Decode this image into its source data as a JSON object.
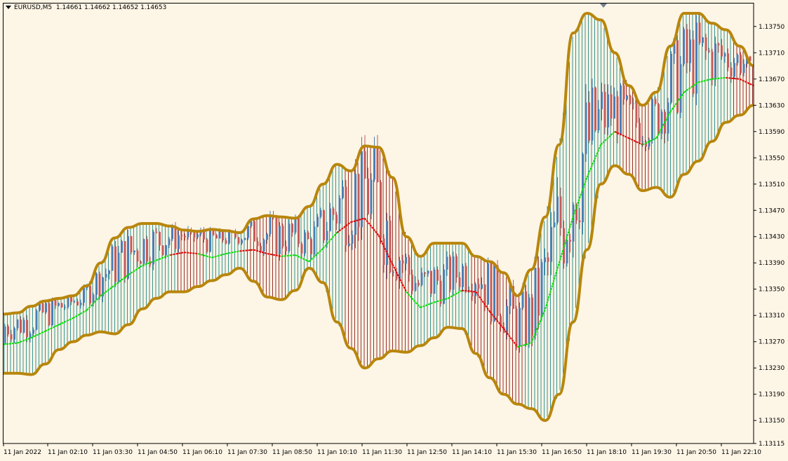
{
  "header": {
    "symbol": "EURUSD,M5",
    "ohlc": "1.14661 1.14662 1.14652 1.14653"
  },
  "colors": {
    "background": "#fdf5e6",
    "band": "#b8860b",
    "up_candle": "#4a7fb5",
    "down_candle": "#c55a5a",
    "ma_up": "#00e000",
    "ma_down": "#e00000",
    "hist_up": "#1f8a8a",
    "hist_down": "#8b1a1a",
    "hist_neutral": "#2a2a2a"
  },
  "chart_data": {
    "type": "candlestick",
    "title": "",
    "xlabel": "",
    "ylabel": "",
    "ylim": [
      1.13115,
      1.13785
    ],
    "y_ticks": [
      "1.13750",
      "1.13710",
      "1.13670",
      "1.13630",
      "1.13590",
      "1.13550",
      "1.13510",
      "1.13470",
      "1.13430",
      "1.13390",
      "1.13350",
      "1.13310",
      "1.13270",
      "1.13230",
      "1.13190",
      "1.13150",
      "1.13115"
    ],
    "x_ticks": [
      "11 Jan 2022",
      "11 Jan 02:10",
      "11 Jan 03:30",
      "11 Jan 04:50",
      "11 Jan 06:10",
      "11 Jan 07:30",
      "11 Jan 08:50",
      "11 Jan 10:10",
      "11 Jan 11:30",
      "11 Jan 12:50",
      "11 Jan 14:10",
      "11 Jan 15:30",
      "11 Jan 16:50",
      "11 Jan 18:10",
      "11 Jan 19:30",
      "11 Jan 20:50",
      "11 Jan 22:10"
    ],
    "grid": false,
    "series": [
      {
        "name": "",
        "kind": "upper_band",
        "values": [
          1.13312,
          1.13314,
          1.13324,
          1.13332,
          1.13336,
          1.1334,
          1.13355,
          1.1339,
          1.13428,
          1.13444,
          1.1345,
          1.1345,
          1.13446,
          1.1344,
          1.13438,
          1.13441,
          1.13439,
          1.13436,
          1.13457,
          1.13462,
          1.1346,
          1.13458,
          1.13476,
          1.1351,
          1.1354,
          1.1353,
          1.13568,
          1.13566,
          1.1352,
          1.1343,
          1.134,
          1.1342,
          1.1342,
          1.1342,
          1.134,
          1.13392,
          1.13375,
          1.1334,
          1.1338,
          1.1346,
          1.1357,
          1.1374,
          1.1377,
          1.1376,
          1.1371,
          1.1366,
          1.1363,
          1.1365,
          1.1372,
          1.1377,
          1.1377,
          1.13755,
          1.13745,
          1.1372,
          1.1369
        ]
      },
      {
        "name": "",
        "kind": "lower_band",
        "values": [
          1.13222,
          1.13222,
          1.1322,
          1.13236,
          1.13258,
          1.1327,
          1.1328,
          1.13285,
          1.13282,
          1.13296,
          1.1332,
          1.13336,
          1.13346,
          1.13346,
          1.13354,
          1.13363,
          1.13372,
          1.13382,
          1.13362,
          1.13338,
          1.13334,
          1.13348,
          1.13382,
          1.1336,
          1.133,
          1.1326,
          1.1323,
          1.13244,
          1.13256,
          1.13254,
          1.13264,
          1.13276,
          1.13292,
          1.1329,
          1.13252,
          1.13215,
          1.1319,
          1.13175,
          1.13168,
          1.1315,
          1.1319,
          1.133,
          1.1341,
          1.1351,
          1.13538,
          1.13525,
          1.135,
          1.13505,
          1.1349,
          1.13525,
          1.13545,
          1.13575,
          1.13604,
          1.13615,
          1.1363
        ]
      },
      {
        "name": "",
        "kind": "middle_line",
        "values": [
          1.13266,
          1.13268,
          1.13276,
          1.13286,
          1.13296,
          1.13306,
          1.13318,
          1.1334,
          1.13356,
          1.13372,
          1.13386,
          1.13394,
          1.13402,
          1.13406,
          1.13404,
          1.13398,
          1.13404,
          1.13408,
          1.1341,
          1.13404,
          1.134,
          1.13402,
          1.13392,
          1.13412,
          1.13436,
          1.13452,
          1.13458,
          1.13432,
          1.13388,
          1.13346,
          1.13322,
          1.1333,
          1.13336,
          1.13348,
          1.13346,
          1.13316,
          1.1329,
          1.13262,
          1.13268,
          1.1332,
          1.1339,
          1.1346,
          1.1352,
          1.1357,
          1.1359,
          1.1358,
          1.1357,
          1.1358,
          1.1362,
          1.1365,
          1.13665,
          1.1367,
          1.13672,
          1.1367,
          1.1366
        ]
      },
      {
        "name": "",
        "kind": "ma_trend",
        "values": [
          "up",
          "up",
          "up",
          "up",
          "up",
          "up",
          "up",
          "up",
          "up",
          "up",
          "up",
          "up",
          "up",
          "down",
          "down",
          "up",
          "up",
          "up",
          "down",
          "down",
          "down",
          "up",
          "up",
          "up",
          "up",
          "down",
          "down",
          "down",
          "down",
          "down",
          "up",
          "up",
          "up",
          "up",
          "down",
          "down",
          "down",
          "down",
          "up",
          "up",
          "up",
          "up",
          "up",
          "up",
          "up",
          "down",
          "down",
          "up",
          "up",
          "up",
          "up",
          "up",
          "up",
          "down",
          "down"
        ]
      }
    ]
  }
}
